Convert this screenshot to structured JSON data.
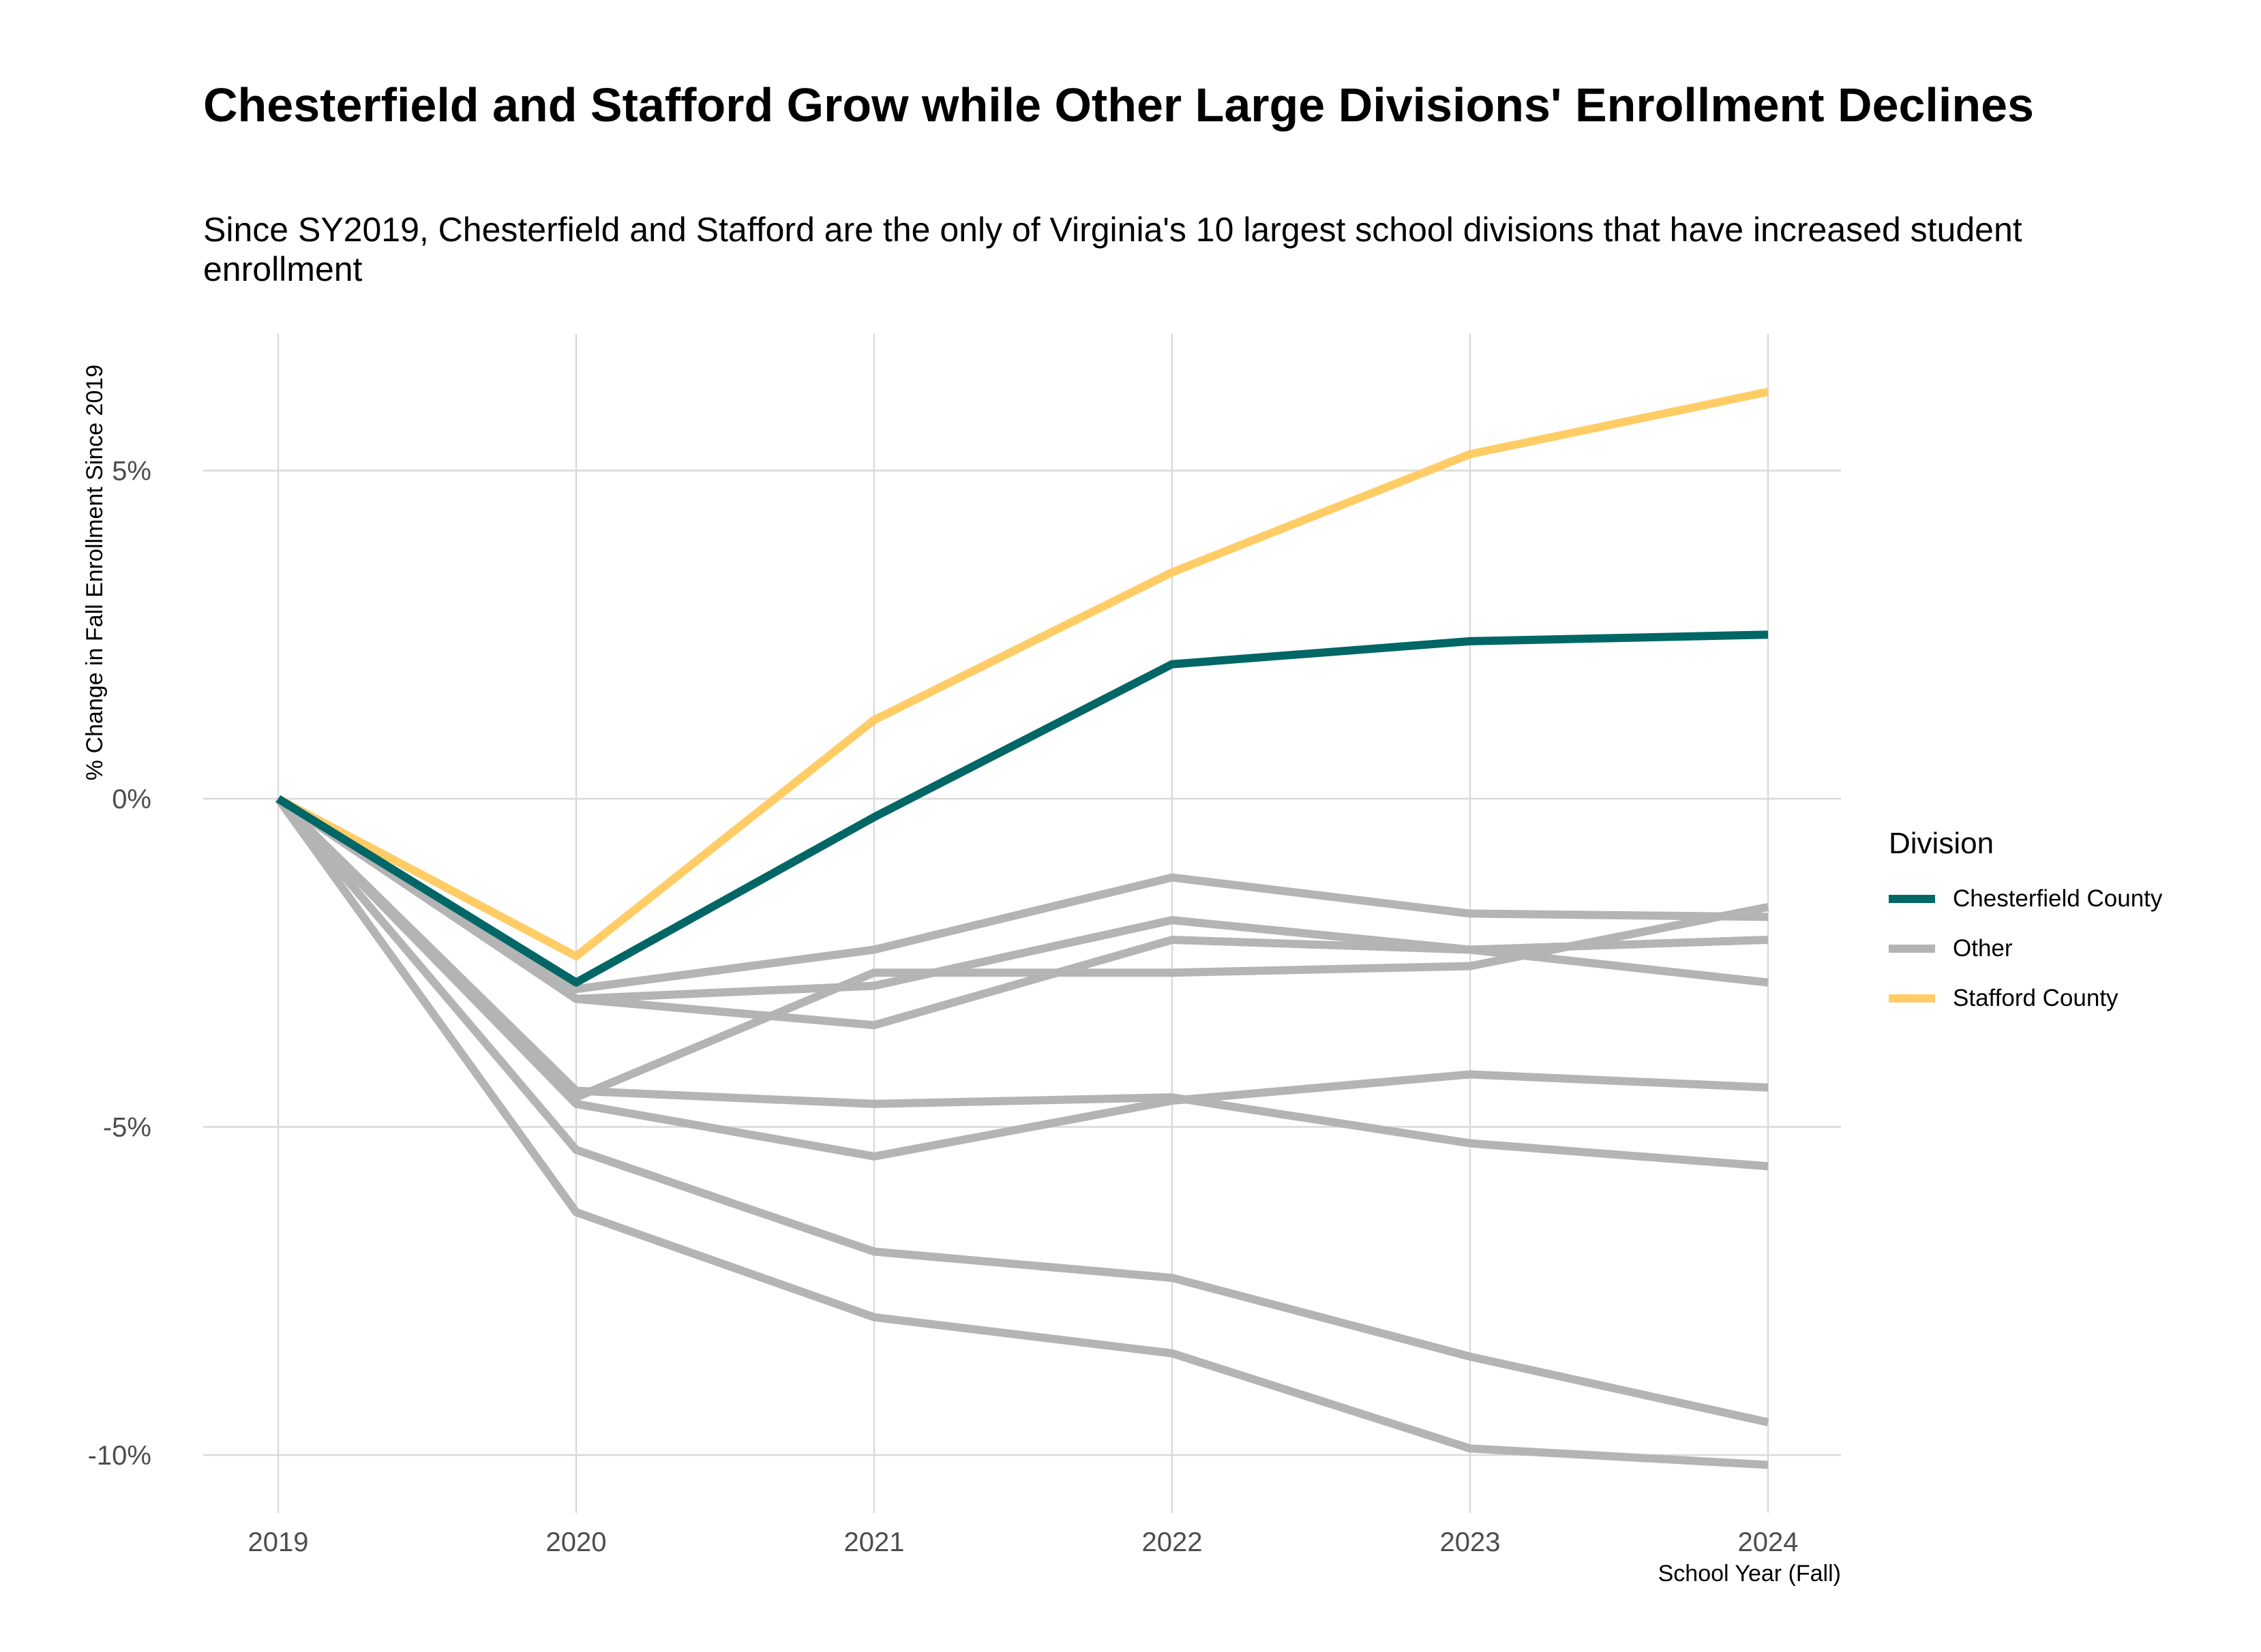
{
  "title": "Chesterfield and Stafford Grow while Other Large Divisions' Enrollment Declines",
  "subtitle": "Since SY2019, Chesterfield and Stafford are the only of Virginia's 10 largest school divisions that have increased student enrollment",
  "chart_data": {
    "type": "line",
    "title": "Chesterfield and Stafford Grow while Other Large Divisions' Enrollment Declines",
    "subtitle": "Since SY2019, Chesterfield and Stafford are the only of Virginia's 10 largest school divisions that have increased student enrollment",
    "xlabel": "School Year (Fall)",
    "ylabel": "% Change in Fall Enrollment Since 2019",
    "x": [
      2019,
      2020,
      2021,
      2022,
      2023,
      2024
    ],
    "x_tick_labels": [
      "2019",
      "2020",
      "2021",
      "2022",
      "2023",
      "2024"
    ],
    "y_ticks": [
      5,
      0,
      -5,
      -10
    ],
    "y_tick_labels": [
      "5%",
      "0%",
      "-5%",
      "-10%"
    ],
    "ylim": [
      -10.9,
      7.05
    ],
    "grid": true,
    "legend": {
      "title": "Division",
      "placement": "right",
      "entries": [
        {
          "label": "Chesterfield County",
          "color": "#006666"
        },
        {
          "label": "Other",
          "color": "#b4b4b4"
        },
        {
          "label": "Stafford County",
          "color": "#ffcc66"
        }
      ]
    },
    "series": [
      {
        "group": "Other",
        "color": "#b4b4b4",
        "values": [
          0,
          -2.9,
          -2.3,
          -1.2,
          -1.75,
          -1.8
        ]
      },
      {
        "group": "Other",
        "color": "#b4b4b4",
        "values": [
          0,
          -3.05,
          -2.85,
          -1.85,
          -2.3,
          -2.8
        ]
      },
      {
        "group": "Other",
        "color": "#b4b4b4",
        "values": [
          0,
          -3.05,
          -3.45,
          -2.15,
          -2.3,
          -2.15
        ]
      },
      {
        "group": "Other",
        "color": "#b4b4b4",
        "values": [
          0,
          -4.55,
          -2.65,
          -2.65,
          -2.55,
          -1.65
        ]
      },
      {
        "group": "Other",
        "color": "#b4b4b4",
        "values": [
          0,
          -4.45,
          -4.65,
          -4.55,
          -5.25,
          -5.6
        ]
      },
      {
        "group": "Other",
        "color": "#b4b4b4",
        "values": [
          0,
          -4.65,
          -5.45,
          -4.6,
          -4.2,
          -4.4
        ]
      },
      {
        "group": "Other",
        "color": "#b4b4b4",
        "values": [
          0,
          -5.35,
          -6.9,
          -7.3,
          -8.5,
          -9.5
        ]
      },
      {
        "group": "Other",
        "color": "#b4b4b4",
        "values": [
          0,
          -6.3,
          -7.9,
          -8.45,
          -9.9,
          -10.15
        ]
      },
      {
        "name": "Stafford County",
        "color": "#ffcc66",
        "values": [
          0,
          -2.4,
          1.2,
          3.45,
          5.25,
          6.2
        ]
      },
      {
        "name": "Chesterfield County",
        "color": "#006666",
        "values": [
          0,
          -2.8,
          -0.28,
          2.05,
          2.4,
          2.5
        ]
      }
    ]
  }
}
